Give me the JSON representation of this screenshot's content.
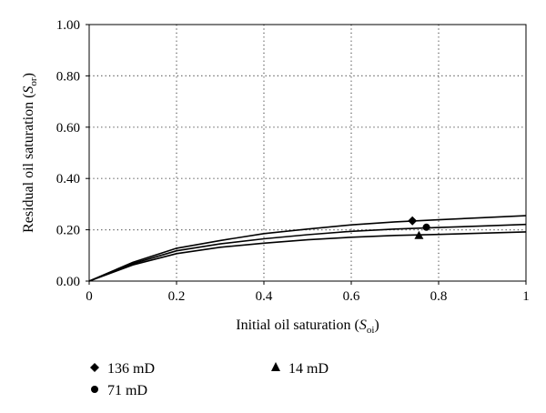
{
  "chart_data": {
    "type": "line",
    "xlabel": {
      "main": "Initial oil saturation (",
      "sym": "S",
      "sub": "oi",
      "close": ")"
    },
    "ylabel": {
      "main": "Residual oil saturation (",
      "sym": "S",
      "sub": "or",
      "close": ")"
    },
    "xlim": [
      0,
      1
    ],
    "ylim": [
      0,
      1
    ],
    "xticks": [
      0,
      0.2,
      0.4,
      0.6,
      0.8,
      1
    ],
    "xtick_labels": [
      "0",
      "0.2",
      "0.4",
      "0.6",
      "0.8",
      "1"
    ],
    "yticks": [
      0,
      0.2,
      0.4,
      0.6,
      0.8,
      1
    ],
    "ytick_labels": [
      "0.00",
      "0.20",
      "0.40",
      "0.60",
      "0.80",
      "1.00"
    ],
    "grid": "dotted",
    "legend_position": "bottom",
    "series": [
      {
        "name": "136 mD",
        "marker": "diamond",
        "x": [
          0,
          0.1,
          0.2,
          0.3,
          0.4,
          0.5,
          0.6,
          0.7,
          0.8,
          0.9,
          1.0
        ],
        "y": [
          0,
          0.073,
          0.128,
          0.158,
          0.185,
          0.203,
          0.219,
          0.231,
          0.239,
          0.247,
          0.255
        ],
        "point": {
          "x": 0.74,
          "y": 0.235
        }
      },
      {
        "name": "71 mD",
        "marker": "circle",
        "x": [
          0,
          0.1,
          0.2,
          0.3,
          0.4,
          0.5,
          0.6,
          0.7,
          0.8,
          0.9,
          1.0
        ],
        "y": [
          0,
          0.068,
          0.118,
          0.145,
          0.165,
          0.181,
          0.194,
          0.203,
          0.209,
          0.215,
          0.221
        ],
        "point": {
          "x": 0.772,
          "y": 0.21
        }
      },
      {
        "name": "14 mD",
        "marker": "triangle",
        "x": [
          0,
          0.1,
          0.2,
          0.3,
          0.4,
          0.5,
          0.6,
          0.7,
          0.8,
          0.9,
          1.0
        ],
        "y": [
          0,
          0.063,
          0.107,
          0.132,
          0.148,
          0.161,
          0.171,
          0.178,
          0.182,
          0.187,
          0.192
        ],
        "point": {
          "x": 0.755,
          "y": 0.178
        }
      }
    ]
  }
}
